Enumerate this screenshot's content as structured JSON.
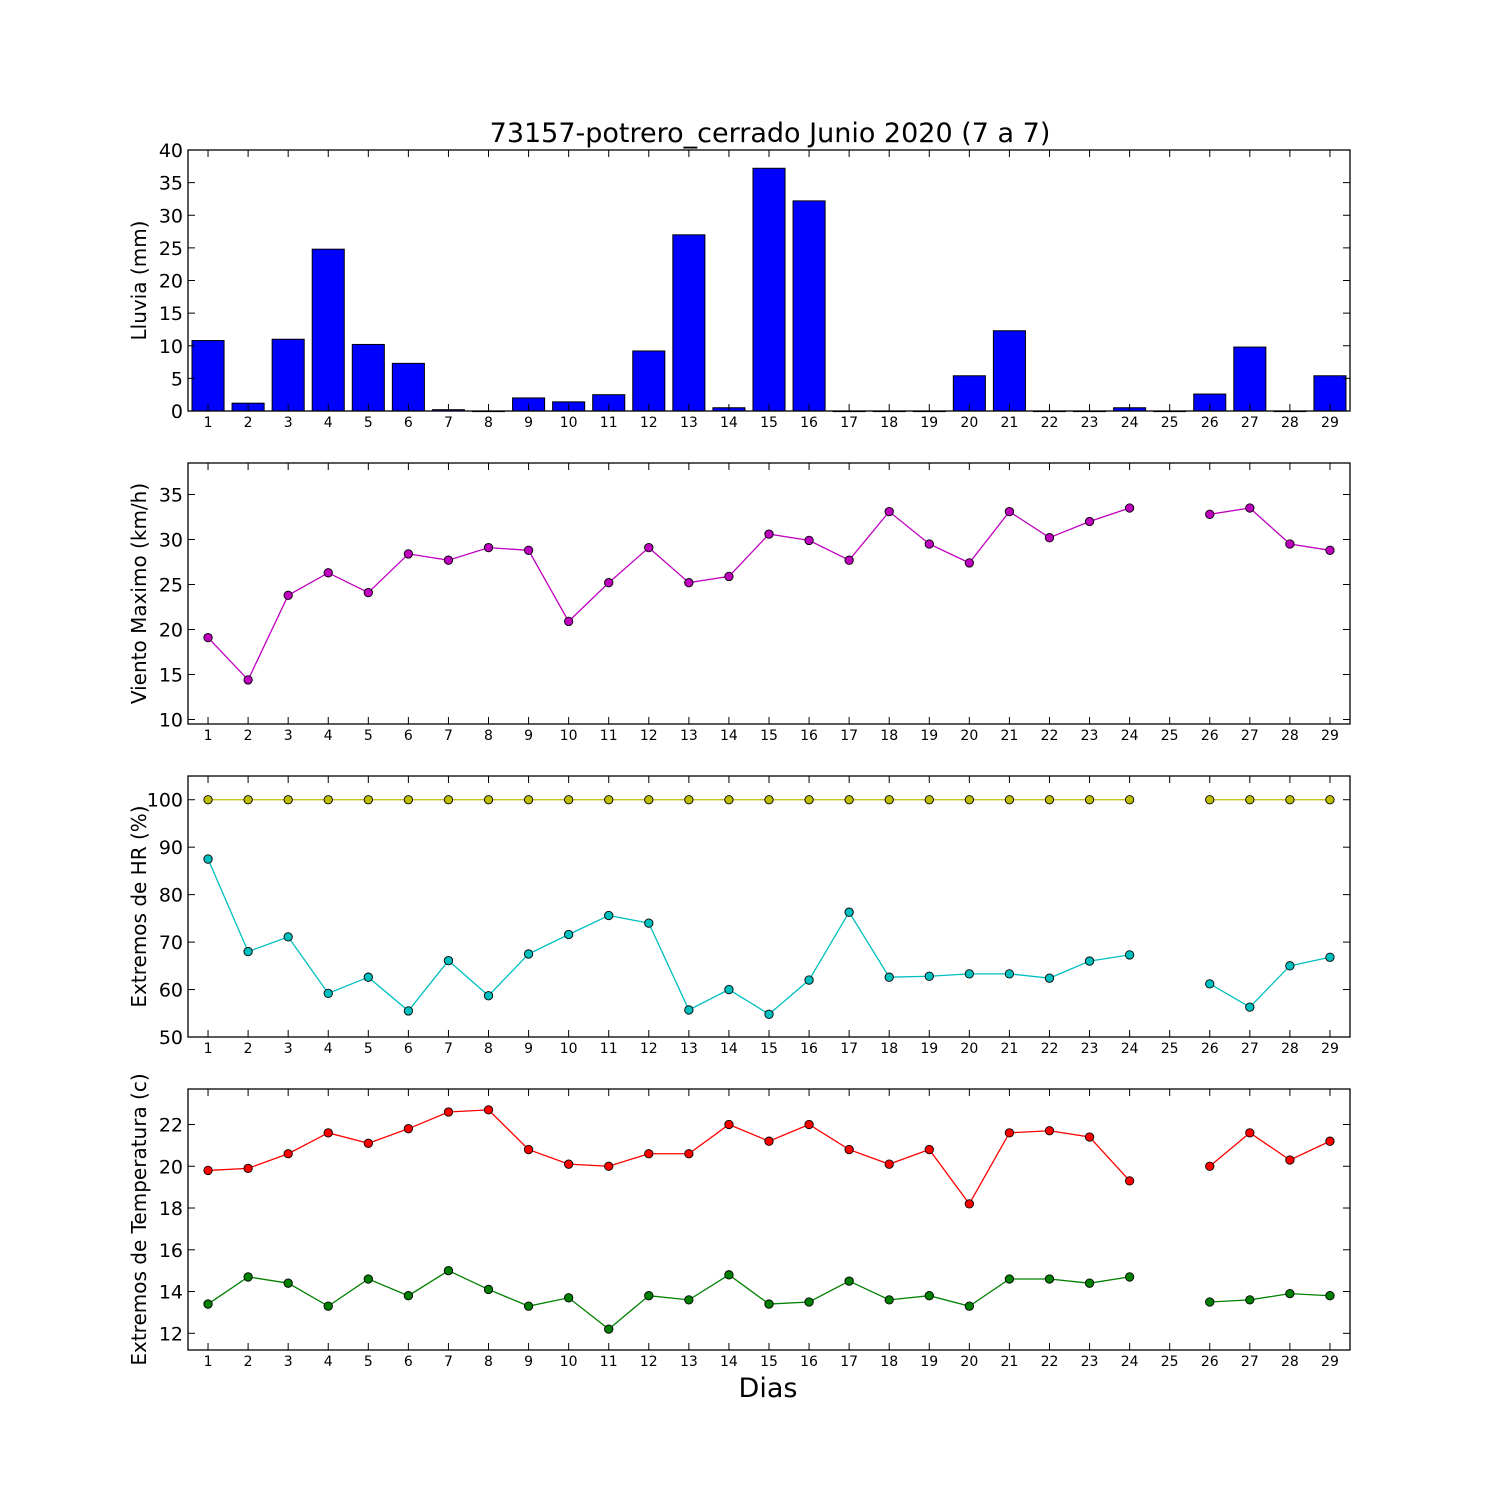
{
  "figure": {
    "title": "73157-potrero_cerrado Junio 2020  (7 a 7)",
    "xlabel": "Dias"
  },
  "chart_data": [
    {
      "id": "lluvia",
      "type": "bar",
      "ylabel": "Lluvia (mm)",
      "ylim": [
        0,
        40
      ],
      "yticks": [
        0,
        5,
        10,
        15,
        20,
        25,
        30,
        35,
        40
      ],
      "xlim": [
        0.5,
        29.5
      ],
      "xticks": [
        1,
        2,
        3,
        4,
        5,
        6,
        7,
        8,
        9,
        10,
        11,
        12,
        13,
        14,
        15,
        16,
        17,
        18,
        19,
        20,
        21,
        22,
        23,
        24,
        25,
        26,
        27,
        28,
        29
      ],
      "grid": false,
      "series": [
        {
          "color": "#0000ff",
          "x": [
            1,
            2,
            3,
            4,
            5,
            6,
            7,
            8,
            9,
            10,
            11,
            12,
            13,
            14,
            15,
            16,
            17,
            18,
            19,
            20,
            21,
            22,
            23,
            24,
            25,
            26,
            27,
            28,
            29
          ],
          "values": [
            10.8,
            1.2,
            11.0,
            24.8,
            10.2,
            7.3,
            0.2,
            0.0,
            2.0,
            1.4,
            2.5,
            9.2,
            27.0,
            0.5,
            37.2,
            32.2,
            0.0,
            0.0,
            0.0,
            5.4,
            12.3,
            0.0,
            0.0,
            0.5,
            0.0,
            2.6,
            9.8,
            0.0,
            5.4
          ]
        }
      ]
    },
    {
      "id": "viento",
      "type": "line",
      "ylabel": "Viento Maximo (km/h)",
      "ylim": [
        9.5,
        38.5
      ],
      "yticks": [
        10,
        15,
        20,
        25,
        30,
        35
      ],
      "xlim": [
        0.5,
        29.5
      ],
      "xticks": [
        1,
        2,
        3,
        4,
        5,
        6,
        7,
        8,
        9,
        10,
        11,
        12,
        13,
        14,
        15,
        16,
        17,
        18,
        19,
        20,
        21,
        22,
        23,
        24,
        25,
        26,
        27,
        28,
        29
      ],
      "grid": false,
      "series": [
        {
          "color": "#bf00bf",
          "x": [
            1,
            2,
            3,
            4,
            5,
            6,
            7,
            8,
            9,
            10,
            11,
            12,
            13,
            14,
            15,
            16,
            17,
            18,
            19,
            20,
            21,
            22,
            23,
            24,
            25,
            26,
            27,
            28,
            29
          ],
          "values": [
            19.1,
            14.4,
            23.8,
            26.3,
            24.1,
            28.4,
            27.7,
            29.1,
            28.8,
            20.9,
            25.2,
            29.1,
            25.2,
            25.9,
            30.6,
            29.9,
            27.7,
            33.1,
            29.5,
            27.4,
            33.1,
            30.2,
            32.0,
            33.5,
            null,
            32.8,
            33.5,
            29.5,
            28.8
          ]
        }
      ]
    },
    {
      "id": "hr",
      "type": "line",
      "ylabel": "Extremos de HR (%)",
      "ylim": [
        50,
        105
      ],
      "yticks": [
        50,
        60,
        70,
        80,
        90,
        100
      ],
      "xlim": [
        0.5,
        29.5
      ],
      "xticks": [
        1,
        2,
        3,
        4,
        5,
        6,
        7,
        8,
        9,
        10,
        11,
        12,
        13,
        14,
        15,
        16,
        17,
        18,
        19,
        20,
        21,
        22,
        23,
        24,
        25,
        26,
        27,
        28,
        29
      ],
      "grid": false,
      "series": [
        {
          "color": "#bfbf00",
          "x": [
            1,
            2,
            3,
            4,
            5,
            6,
            7,
            8,
            9,
            10,
            11,
            12,
            13,
            14,
            15,
            16,
            17,
            18,
            19,
            20,
            21,
            22,
            23,
            24,
            25,
            26,
            27,
            28,
            29
          ],
          "values": [
            100,
            100,
            100,
            100,
            100,
            100,
            100,
            100,
            100,
            100,
            100,
            100,
            100,
            100,
            100,
            100,
            100,
            100,
            100,
            100,
            100,
            100,
            100,
            100,
            null,
            100,
            100,
            100,
            100
          ]
        },
        {
          "color": "#00bfbf",
          "x": [
            1,
            2,
            3,
            4,
            5,
            6,
            7,
            8,
            9,
            10,
            11,
            12,
            13,
            14,
            15,
            16,
            17,
            18,
            19,
            20,
            21,
            22,
            23,
            24,
            25,
            26,
            27,
            28,
            29
          ],
          "values": [
            87.5,
            68.0,
            71.1,
            59.2,
            62.6,
            55.5,
            66.1,
            58.7,
            67.5,
            71.6,
            75.6,
            74.0,
            55.7,
            60.0,
            54.8,
            62.0,
            76.3,
            62.6,
            62.8,
            63.3,
            63.3,
            62.4,
            66.0,
            67.3,
            null,
            61.2,
            56.3,
            65.0,
            66.8
          ]
        }
      ]
    },
    {
      "id": "temperatura",
      "type": "line",
      "ylabel": "Extremos de Temperatura (c)",
      "ylim": [
        11.2,
        23.7
      ],
      "yticks": [
        12,
        14,
        16,
        18,
        20,
        22
      ],
      "xlim": [
        0.5,
        29.5
      ],
      "xticks": [
        1,
        2,
        3,
        4,
        5,
        6,
        7,
        8,
        9,
        10,
        11,
        12,
        13,
        14,
        15,
        16,
        17,
        18,
        19,
        20,
        21,
        22,
        23,
        24,
        25,
        26,
        27,
        28,
        29
      ],
      "grid": false,
      "series": [
        {
          "color": "#ff0000",
          "x": [
            1,
            2,
            3,
            4,
            5,
            6,
            7,
            8,
            9,
            10,
            11,
            12,
            13,
            14,
            15,
            16,
            17,
            18,
            19,
            20,
            21,
            22,
            23,
            24,
            25,
            26,
            27,
            28,
            29
          ],
          "values": [
            19.8,
            19.9,
            20.6,
            21.6,
            21.1,
            21.8,
            22.6,
            22.7,
            20.8,
            20.1,
            20.0,
            20.6,
            20.6,
            22.0,
            21.2,
            22.0,
            20.8,
            20.1,
            20.8,
            18.2,
            21.6,
            21.7,
            21.4,
            19.3,
            null,
            20.0,
            21.6,
            20.3,
            21.2
          ]
        },
        {
          "color": "#008000",
          "x": [
            1,
            2,
            3,
            4,
            5,
            6,
            7,
            8,
            9,
            10,
            11,
            12,
            13,
            14,
            15,
            16,
            17,
            18,
            19,
            20,
            21,
            22,
            23,
            24,
            25,
            26,
            27,
            28,
            29
          ],
          "values": [
            13.4,
            14.7,
            14.4,
            13.3,
            14.6,
            13.8,
            15.0,
            14.1,
            13.3,
            13.7,
            12.2,
            13.8,
            13.6,
            14.8,
            13.4,
            13.5,
            14.5,
            13.6,
            13.8,
            13.3,
            14.6,
            14.6,
            14.4,
            14.7,
            null,
            13.5,
            13.6,
            13.9,
            13.8
          ]
        }
      ]
    }
  ]
}
